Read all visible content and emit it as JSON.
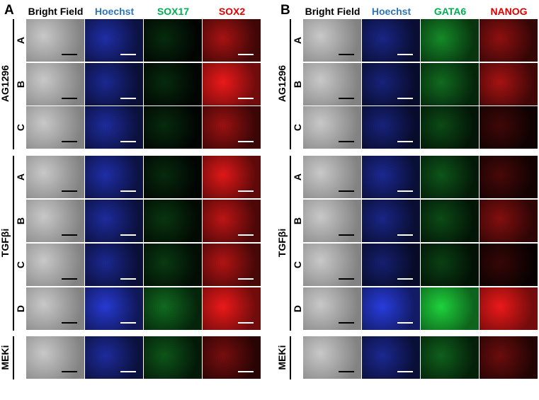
{
  "panels": [
    {
      "letter": "A",
      "columns": [
        {
          "label": "Bright Field",
          "color": "#000000",
          "channel": "bf"
        },
        {
          "label": "Hoechst",
          "color": "#2e75b6",
          "channel": "blue"
        },
        {
          "label": "SOX17",
          "color": "#00b050",
          "channel": "green"
        },
        {
          "label": "SOX2",
          "color": "#e00000",
          "channel": "red"
        }
      ],
      "groups": [
        {
          "name": "AG1296",
          "rows": [
            "A",
            "B",
            "C"
          ]
        },
        {
          "name": "TGFβi",
          "rows": [
            "A",
            "B",
            "C",
            "D"
          ]
        },
        {
          "name": "MEKi",
          "rows": [
            ""
          ]
        }
      ]
    },
    {
      "letter": "B",
      "columns": [
        {
          "label": "Bright Field",
          "color": "#000000",
          "channel": "bf"
        },
        {
          "label": "Hoechst",
          "color": "#2e75b6",
          "channel": "blue"
        },
        {
          "label": "GATA6",
          "color": "#00b050",
          "channel": "green"
        },
        {
          "label": "NANOG",
          "color": "#e00000",
          "channel": "red"
        }
      ],
      "groups": [
        {
          "name": "AG1296",
          "rows": [
            "A",
            "B",
            "C"
          ]
        },
        {
          "name": "TGFβi",
          "rows": [
            "A",
            "B",
            "C",
            "D"
          ]
        },
        {
          "name": "MEKi",
          "rows": [
            ""
          ]
        }
      ]
    }
  ]
}
